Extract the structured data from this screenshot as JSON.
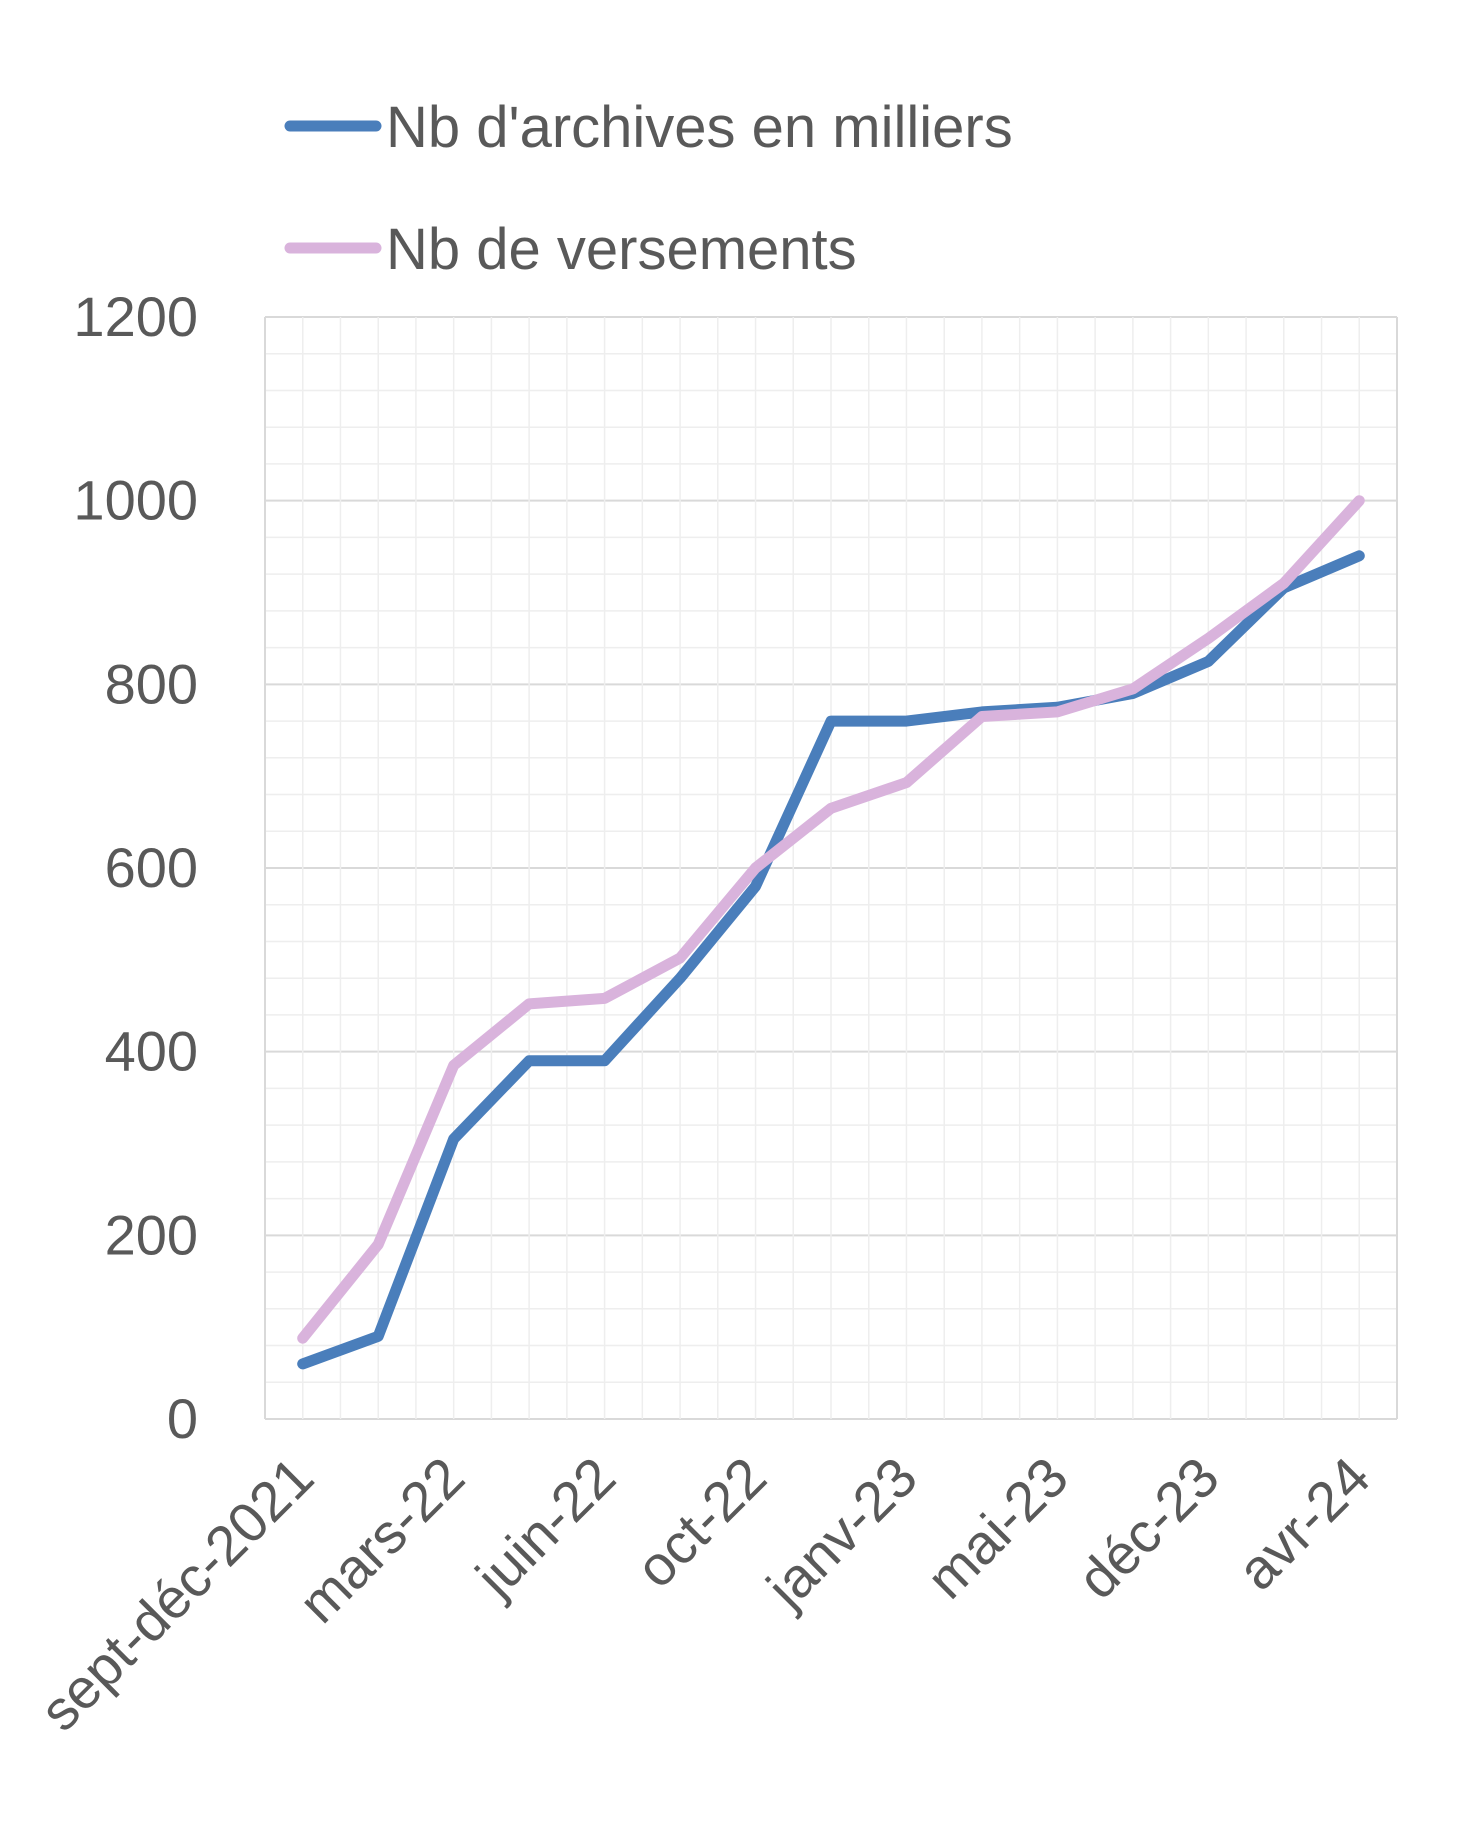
{
  "chart_data": {
    "type": "line",
    "title": "",
    "xlabel": "",
    "ylabel": "",
    "x_tick_labels": [
      "sept-déc-2021",
      "mars-22",
      "juin-22",
      "oct-22",
      "janv-23",
      "mai-23",
      "déc-23",
      "avr-24"
    ],
    "y_ticks": [
      0,
      200,
      400,
      600,
      800,
      1000,
      1200
    ],
    "ylim": [
      0,
      1200
    ],
    "grid": true,
    "legend_position": "top",
    "series": [
      {
        "name": "Nb d'archives en milliers",
        "color": "#4a7ebb",
        "values": [
          60,
          90,
          305,
          390,
          390,
          480,
          580,
          760,
          760,
          770,
          775,
          790,
          825,
          905,
          940
        ]
      },
      {
        "name": "Nb de versements",
        "color": "#d9b3dc",
        "values": [
          88,
          190,
          385,
          452,
          458,
          502,
          600,
          665,
          693,
          765,
          770,
          795,
          850,
          910,
          1000
        ]
      }
    ]
  }
}
